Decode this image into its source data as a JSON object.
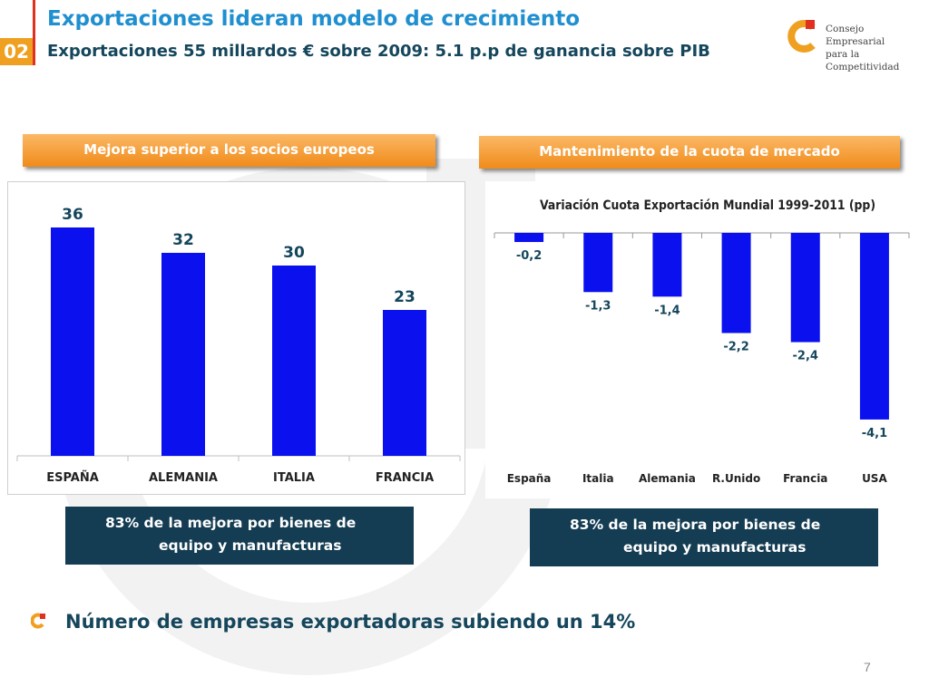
{
  "header": {
    "section_number": "02",
    "title": "Exportaciones lideran modelo de crecimiento",
    "subtitle": "Exportaciones 55 millardos € sobre 2009: 5.1 p.p de ganancia sobre PIB"
  },
  "logo": {
    "line1": "Consejo Empresarial",
    "line2": "para la",
    "line3": "Competitividad"
  },
  "left_section": {
    "heading": "Mejora superior a los socios europeos",
    "note_line1": "83% de la mejora por bienes de",
    "note_line2": "equipo y manufacturas"
  },
  "right_section": {
    "heading": "Mantenimiento de la cuota de mercado",
    "note_line1": "83% de la mejora por bienes de",
    "note_line2": "equipo y manufacturas"
  },
  "bullet": {
    "text": "Número de empresas exportadoras subiendo un 14%"
  },
  "page_number": "7",
  "colors": {
    "bar": "#0a10ee",
    "title": "#1f8fd0",
    "navy": "#143c52",
    "orange": "#f08b1a"
  },
  "chart_data": [
    {
      "type": "bar",
      "title": "",
      "categories": [
        "ESPAÑA",
        "ALEMANIA",
        "ITALIA",
        "FRANCIA"
      ],
      "values": [
        36,
        32,
        30,
        23
      ],
      "value_labels": [
        "36",
        "32",
        "30",
        "23"
      ],
      "ylim": [
        0,
        40
      ],
      "grid": false
    },
    {
      "type": "bar",
      "title": "Variación Cuota Exportación Mundial 1999-2011 (pp)",
      "categories": [
        "España",
        "Italia",
        "Alemania",
        "R.Unido",
        "Francia",
        "USA"
      ],
      "values": [
        -0.2,
        -1.3,
        -1.4,
        -2.2,
        -2.4,
        -4.1
      ],
      "value_labels": [
        "-0,2",
        "-1,3",
        "-1,4",
        "-2,2",
        "-2,4",
        "-4,1"
      ],
      "ylim": [
        -4.5,
        0
      ],
      "grid": false
    }
  ]
}
